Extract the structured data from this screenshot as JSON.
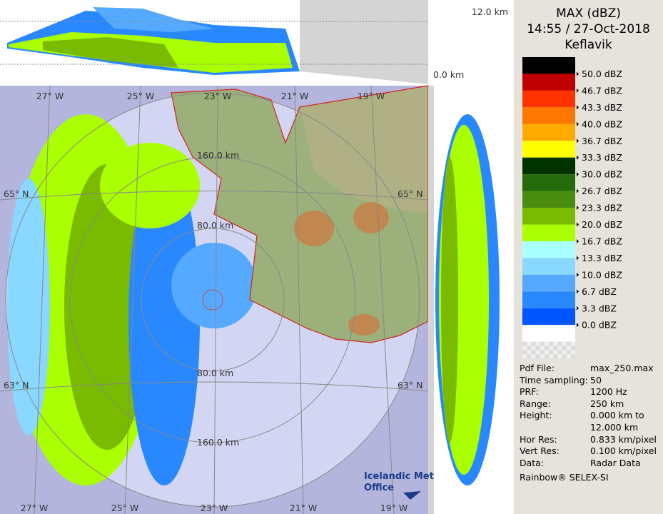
{
  "header": {
    "title": "MAX (dBZ)",
    "time": "14:55 / 27-Oct-2018",
    "station": "Keflavik"
  },
  "legend": {
    "colors": [
      "#000000",
      "#c00000",
      "#ff3300",
      "#ff7700",
      "#ffaa00",
      "#ffff00",
      "#003300",
      "#236b0b",
      "#4a8c10",
      "#78bb00",
      "#aaff00",
      "#aaffff",
      "#88d8ff",
      "#55aaff",
      "#2a88ff",
      "#0055ff",
      "#ffffff"
    ],
    "labels": [
      "50.0 dBZ",
      "46.7 dBZ",
      "43.3 dBZ",
      "40.0 dBZ",
      "36.7 dBZ",
      "33.3 dBZ",
      "30.0 dBZ",
      "26.7 dBZ",
      "23.3 dBZ",
      "20.0 dBZ",
      "16.7 dBZ",
      "13.3 dBZ",
      "10.0 dBZ",
      "6.7 dBZ",
      "3.3 dBZ",
      "0.0 dBZ"
    ]
  },
  "info": [
    [
      "Pdf File:",
      "max_250.max"
    ],
    [
      "Time sampling:",
      "50"
    ],
    [
      "PRF:",
      "1200 Hz"
    ],
    [
      "Range:",
      "250 km"
    ],
    [
      "Height:",
      "0.000 km to"
    ],
    [
      "",
      "12.000 km"
    ],
    [
      "Hor Res:",
      "0.833 km/pixel"
    ],
    [
      "Vert Res:",
      "0.100 km/pixel"
    ],
    [
      "Data:",
      "Radar Data"
    ]
  ],
  "footer": "Rainbow® SELEX-SI",
  "map": {
    "height_top": "12.0 km",
    "height_bottom": "0.0 km",
    "lon_top": [
      "27° W",
      "25° W",
      "23° W",
      "21° W",
      "19° W"
    ],
    "lon_bottom": [
      "27° W",
      "25° W",
      "23° W",
      "21° W",
      "19° W"
    ],
    "lat_left": [
      "65° N",
      "63° N"
    ],
    "lat_right": [
      "65° N",
      "63° N"
    ],
    "ranges": [
      "160.0 km",
      "80.0 km",
      "80.0 km",
      "160.0 km"
    ],
    "logo": [
      "Icelandic Met",
      "Office"
    ]
  }
}
